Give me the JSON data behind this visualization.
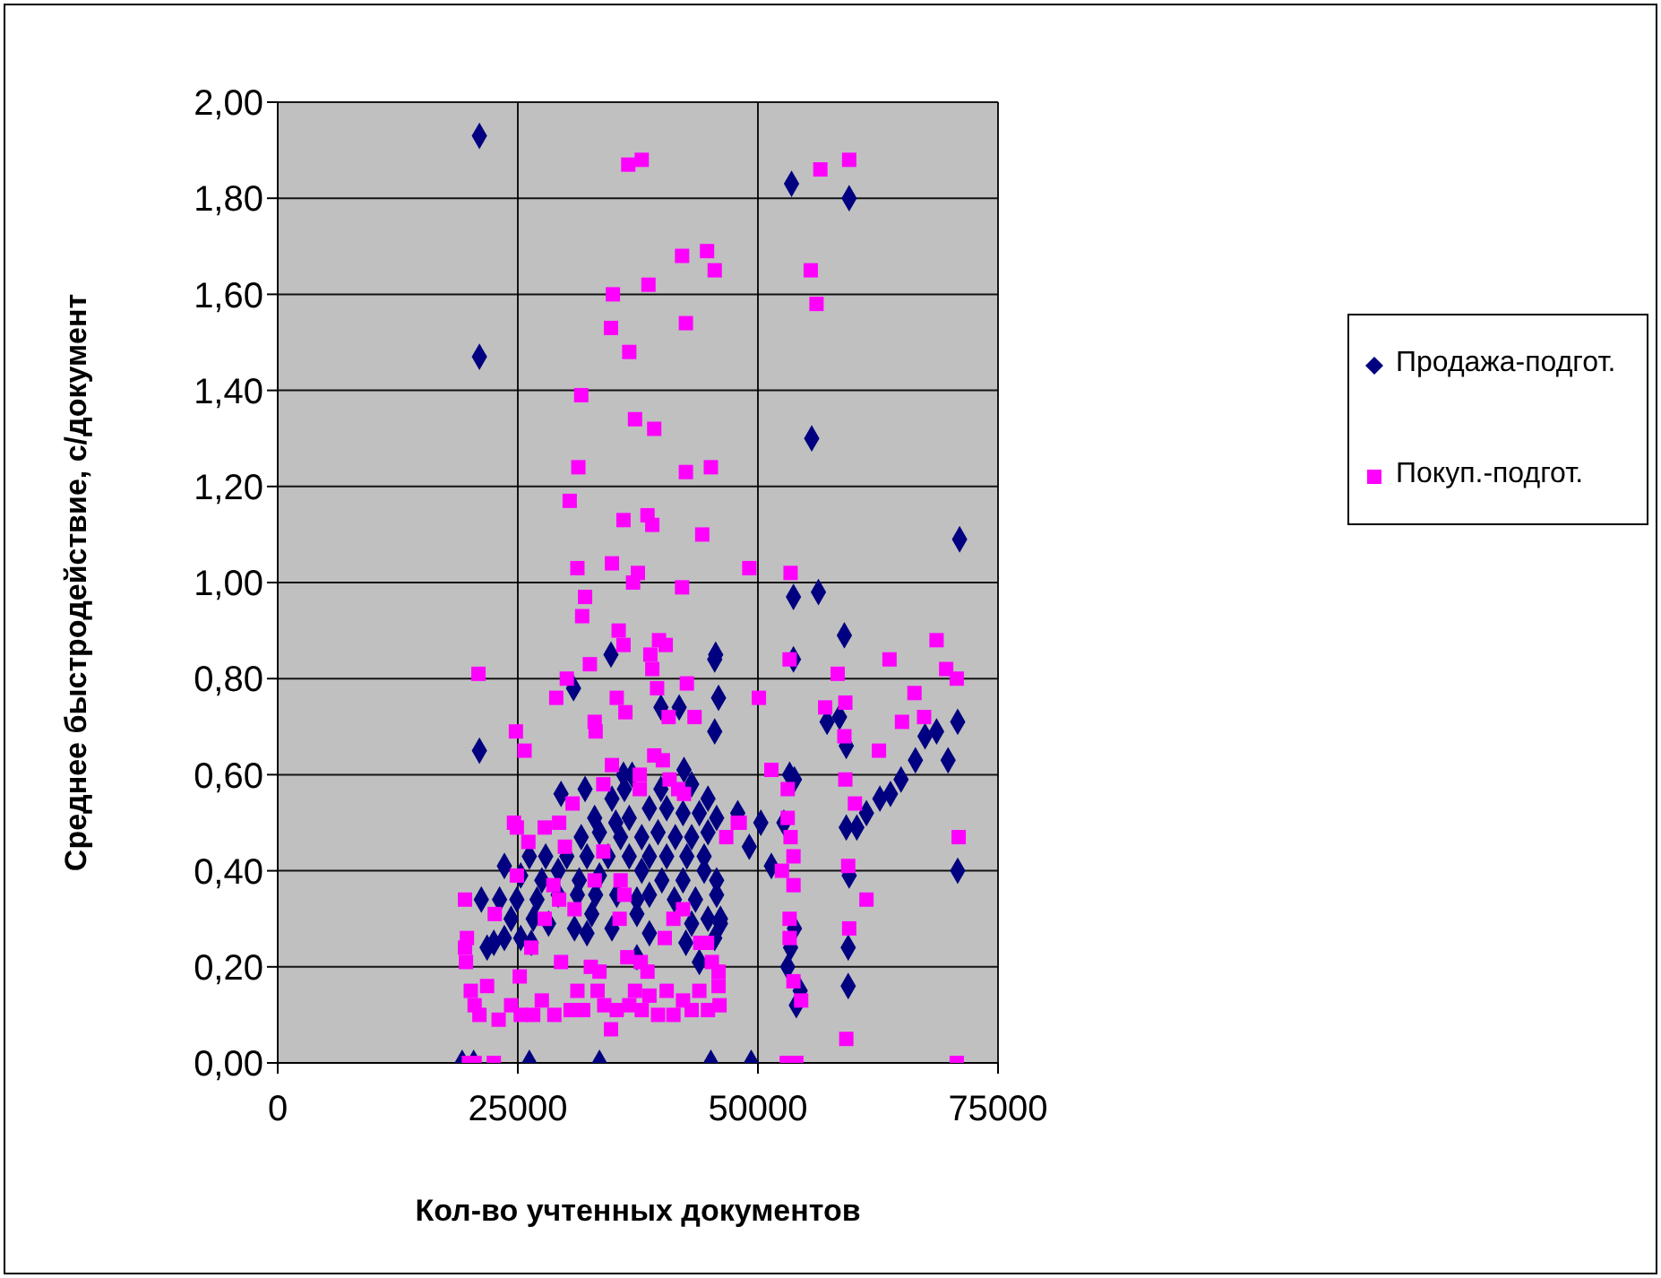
{
  "chart_data": {
    "type": "scatter",
    "xlabel": "Кол-во учтенных документов",
    "ylabel": "Среднее быстродействие, с/документ",
    "xlim": [
      0,
      75000
    ],
    "xticks": [
      0,
      25000,
      50000,
      75000
    ],
    "ylim": [
      0,
      2
    ],
    "yticks": [
      {
        "value": 0,
        "label": "0,00"
      },
      {
        "value": 0.2,
        "label": "0,20"
      },
      {
        "value": 0.4,
        "label": "0,40"
      },
      {
        "value": 0.6,
        "label": "0,60"
      },
      {
        "value": 0.8,
        "label": "0,80"
      },
      {
        "value": 1,
        "label": "1,00"
      },
      {
        "value": 1.2,
        "label": "1,20"
      },
      {
        "value": 1.4,
        "label": "1,40"
      },
      {
        "value": 1.6,
        "label": "1,60"
      },
      {
        "value": 1.8,
        "label": "1,80"
      },
      {
        "value": 2,
        "label": "2,00"
      }
    ],
    "grid": true,
    "legend": "right",
    "series": [
      {
        "name": "Продажа-подгот.",
        "color": "#000080",
        "marker": "diamond",
        "x": [
          21000,
          21000,
          21000,
          53500,
          59500,
          55600,
          56300,
          53700,
          53700,
          59000,
          45600,
          71000,
          70800,
          70800,
          53300,
          53800,
          61300,
          62700,
          63800,
          64900,
          66400,
          67400,
          68600,
          69800,
          57200,
          58500,
          59200,
          59200,
          60300,
          59500,
          59400,
          59400,
          53100,
          53400,
          53800,
          54000,
          54400,
          52700,
          51400,
          49100,
          50300,
          47900,
          46100,
          45500,
          45900,
          19200,
          20400,
          26200,
          33500,
          45100,
          49300,
          29500,
          32000,
          36000,
          36900,
          39900,
          42300,
          43100,
          44800,
          34800,
          36100,
          33000,
          35200,
          36600,
          38700,
          40500,
          42200,
          43900,
          45700,
          31600,
          33500,
          35700,
          37900,
          39600,
          41400,
          43100,
          44800,
          26200,
          27900,
          30100,
          32200,
          34400,
          36600,
          38700,
          40500,
          42600,
          44400,
          23600,
          25300,
          27500,
          29200,
          31400,
          33500,
          37900,
          40000,
          42200,
          44400,
          45700,
          23100,
          24900,
          27000,
          29200,
          31200,
          33100,
          35300,
          37400,
          38700,
          41300,
          43500,
          45700,
          24300,
          26600,
          28200,
          30900,
          32700,
          34800,
          37400,
          38700,
          43100,
          44800,
          46100,
          21200,
          21800,
          22500,
          25300,
          26400,
          32200,
          42500,
          43900,
          45500,
          37400,
          23600,
          34700,
          30800,
          39900,
          41800,
          45500
        ],
        "values": [
          1.93,
          1.47,
          0.65,
          1.83,
          1.8,
          1.3,
          0.98,
          0.97,
          0.84,
          0.89,
          0.85,
          1.09,
          0.71,
          0.4,
          0.6,
          0.59,
          0.52,
          0.55,
          0.56,
          0.59,
          0.63,
          0.68,
          0.69,
          0.63,
          0.71,
          0.72,
          0.66,
          0.49,
          0.49,
          0.39,
          0.24,
          0.16,
          0.2,
          0.24,
          0.28,
          0.12,
          0.15,
          0.5,
          0.41,
          0.45,
          0.5,
          0.52,
          0.29,
          0.84,
          0.76,
          0,
          0,
          0,
          0,
          0,
          0,
          0.56,
          0.57,
          0.6,
          0.6,
          0.57,
          0.61,
          0.58,
          0.55,
          0.55,
          0.57,
          0.51,
          0.5,
          0.51,
          0.53,
          0.53,
          0.52,
          0.52,
          0.51,
          0.47,
          0.48,
          0.47,
          0.47,
          0.48,
          0.47,
          0.47,
          0.48,
          0.43,
          0.43,
          0.43,
          0.43,
          0.43,
          0.43,
          0.43,
          0.43,
          0.43,
          0.43,
          0.41,
          0.39,
          0.38,
          0.4,
          0.38,
          0.39,
          0.4,
          0.38,
          0.38,
          0.4,
          0.38,
          0.34,
          0.34,
          0.34,
          0.35,
          0.35,
          0.35,
          0.35,
          0.34,
          0.35,
          0.34,
          0.34,
          0.35,
          0.3,
          0.3,
          0.29,
          0.28,
          0.31,
          0.28,
          0.31,
          0.27,
          0.29,
          0.3,
          0.3,
          0.34,
          0.24,
          0.25,
          0.26,
          0.25,
          0.27,
          0.25,
          0.21,
          0.26,
          0.22,
          0.26,
          0.85,
          0.78,
          0.74,
          0.74,
          0.69
        ]
      },
      {
        "name": "Покуп.-подгот.",
        "color": "#ff00ff",
        "marker": "square",
        "x": [
          36500,
          37900,
          42100,
          44700,
          45500,
          38600,
          34900,
          34700,
          42500,
          36600,
          31600,
          37200,
          39200,
          31300,
          42500,
          45100,
          30400,
          36000,
          38500,
          39000,
          44200,
          31200,
          34800,
          37500,
          37000,
          42100,
          49100,
          32000,
          31700,
          56500,
          59500,
          55500,
          56100,
          53400,
          20900,
          35500,
          36000,
          39700,
          40400,
          32500,
          38800,
          39000,
          30100,
          42600,
          39500,
          35300,
          29000,
          36200,
          50100,
          40700,
          43400,
          33000,
          33100,
          24800,
          25700,
          39200,
          40100,
          34800,
          40800,
          37700,
          37700,
          33900,
          41700,
          42300,
          30700,
          24600,
          24900,
          27800,
          29300,
          26100,
          29900,
          33900,
          48100,
          46700,
          24900,
          28700,
          33000,
          35700,
          36100,
          29300,
          19500,
          30900,
          42200,
          22600,
          27800,
          35600,
          41200,
          40300,
          26400,
          44000,
          44700,
          36400,
          29500,
          32600,
          33500,
          37800,
          38500,
          45200,
          45900,
          25200,
          19700,
          19500,
          19600,
          20100,
          21800,
          20500,
          21000,
          23000,
          24300,
          25300,
          26600,
          27500,
          28800,
          30500,
          31200,
          31800,
          33300,
          34000,
          34700,
          35300,
          36600,
          37200,
          37900,
          38700,
          39600,
          40500,
          41200,
          42200,
          43100,
          43900,
          44800,
          45900,
          46000,
          19900,
          20500,
          22500,
          68600,
          63700,
          69600,
          70700,
          66300,
          58300,
          53300,
          57000,
          59100,
          67300,
          65000,
          59000,
          62600,
          51400,
          53100,
          59100,
          60100,
          53100,
          47900,
          70900,
          53400,
          53700,
          52500,
          53700,
          59400,
          61300,
          53300,
          53300,
          59500,
          53700,
          54500,
          59200,
          53000,
          54000,
          70700
        ],
        "values": [
          1.87,
          1.88,
          1.68,
          1.69,
          1.65,
          1.62,
          1.6,
          1.53,
          1.54,
          1.48,
          1.39,
          1.34,
          1.32,
          1.24,
          1.23,
          1.24,
          1.17,
          1.13,
          1.14,
          1.12,
          1.1,
          1.03,
          1.04,
          1.02,
          1,
          0.99,
          1.03,
          0.97,
          0.93,
          1.86,
          1.88,
          1.65,
          1.58,
          1.02,
          0.81,
          0.9,
          0.87,
          0.88,
          0.87,
          0.83,
          0.85,
          0.82,
          0.8,
          0.79,
          0.78,
          0.76,
          0.76,
          0.73,
          0.76,
          0.72,
          0.72,
          0.71,
          0.69,
          0.69,
          0.65,
          0.64,
          0.63,
          0.62,
          0.59,
          0.6,
          0.57,
          0.58,
          0.57,
          0.56,
          0.54,
          0.5,
          0.49,
          0.49,
          0.5,
          0.46,
          0.45,
          0.44,
          0.5,
          0.47,
          0.39,
          0.37,
          0.38,
          0.38,
          0.35,
          0.34,
          0.34,
          0.32,
          0.32,
          0.31,
          0.3,
          0.3,
          0.3,
          0.26,
          0.24,
          0.25,
          0.25,
          0.22,
          0.21,
          0.2,
          0.19,
          0.21,
          0.19,
          0.21,
          0.19,
          0.18,
          0.26,
          0.24,
          0.21,
          0.15,
          0.16,
          0.12,
          0.1,
          0.09,
          0.12,
          0.1,
          0.1,
          0.13,
          0.1,
          0.11,
          0.15,
          0.11,
          0.15,
          0.12,
          0.07,
          0.11,
          0.12,
          0.15,
          0.11,
          0.14,
          0.1,
          0.15,
          0.1,
          0.13,
          0.11,
          0.15,
          0.11,
          0.16,
          0.12,
          0,
          0,
          0,
          0.88,
          0.84,
          0.82,
          0.8,
          0.77,
          0.81,
          0.84,
          0.74,
          0.75,
          0.72,
          0.71,
          0.68,
          0.65,
          0.61,
          0.57,
          0.59,
          0.54,
          0.51,
          0.5,
          0.47,
          0.47,
          0.43,
          0.4,
          0.37,
          0.41,
          0.34,
          0.3,
          0.26,
          0.28,
          0.17,
          0.13,
          0.05,
          0,
          0,
          0
        ]
      }
    ]
  }
}
